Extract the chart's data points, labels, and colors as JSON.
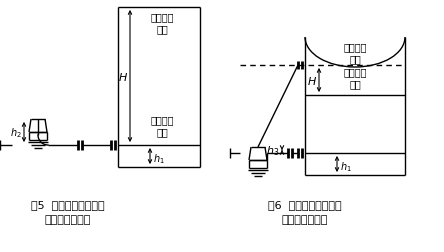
{
  "fig5_title": "图5  双法兰差压变送器",
  "fig5_subtitle": "安装方式应用五",
  "fig6_title": "图6  双法兰差压变送器",
  "fig6_subtitle": "安装方式应用六",
  "bg_color": "#ffffff",
  "line_color": "#000000",
  "font_size_label": 7.0,
  "font_size_caption": 8.0,
  "font_size_sym": 8.0
}
